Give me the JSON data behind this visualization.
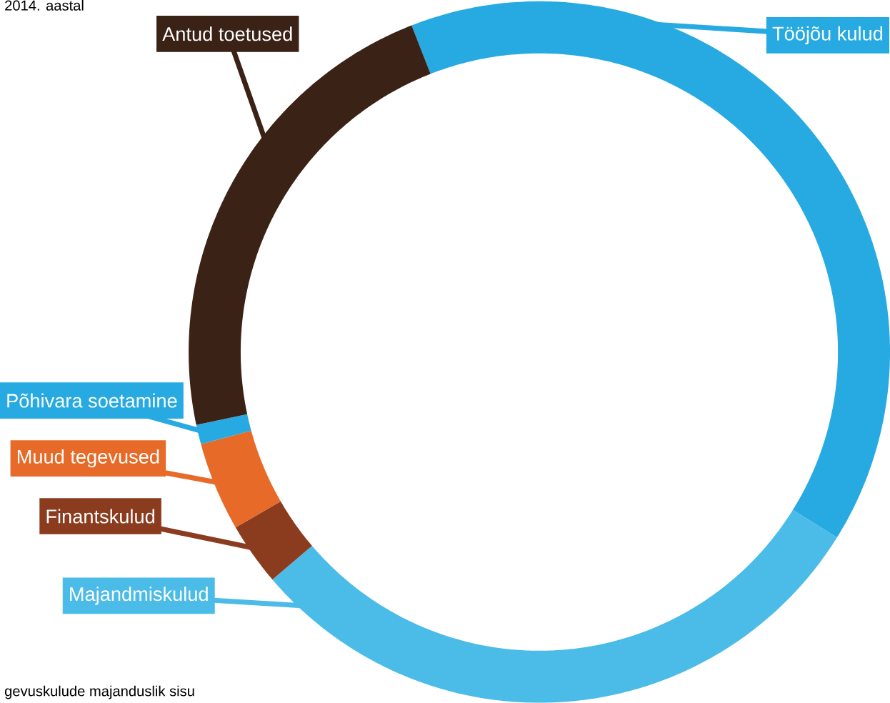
{
  "chart_data": {
    "type": "donut",
    "categories": [
      "Tööjõu kulud",
      "Majandmiskulud",
      "Finantskulud",
      "Muud tegevused",
      "Põhivara soetamine",
      "Antud toetused"
    ],
    "values": [
      39.8,
      29.9,
      2.9,
      4.1,
      0.9,
      22.4
    ],
    "colors": [
      "#26aae1",
      "#4bbbe8",
      "#8b3c1e",
      "#e86a28",
      "#26aae1",
      "#3b2216"
    ],
    "annotations": [
      "2014. aastal",
      "gevuskulude majanduslik sisu"
    ]
  }
}
